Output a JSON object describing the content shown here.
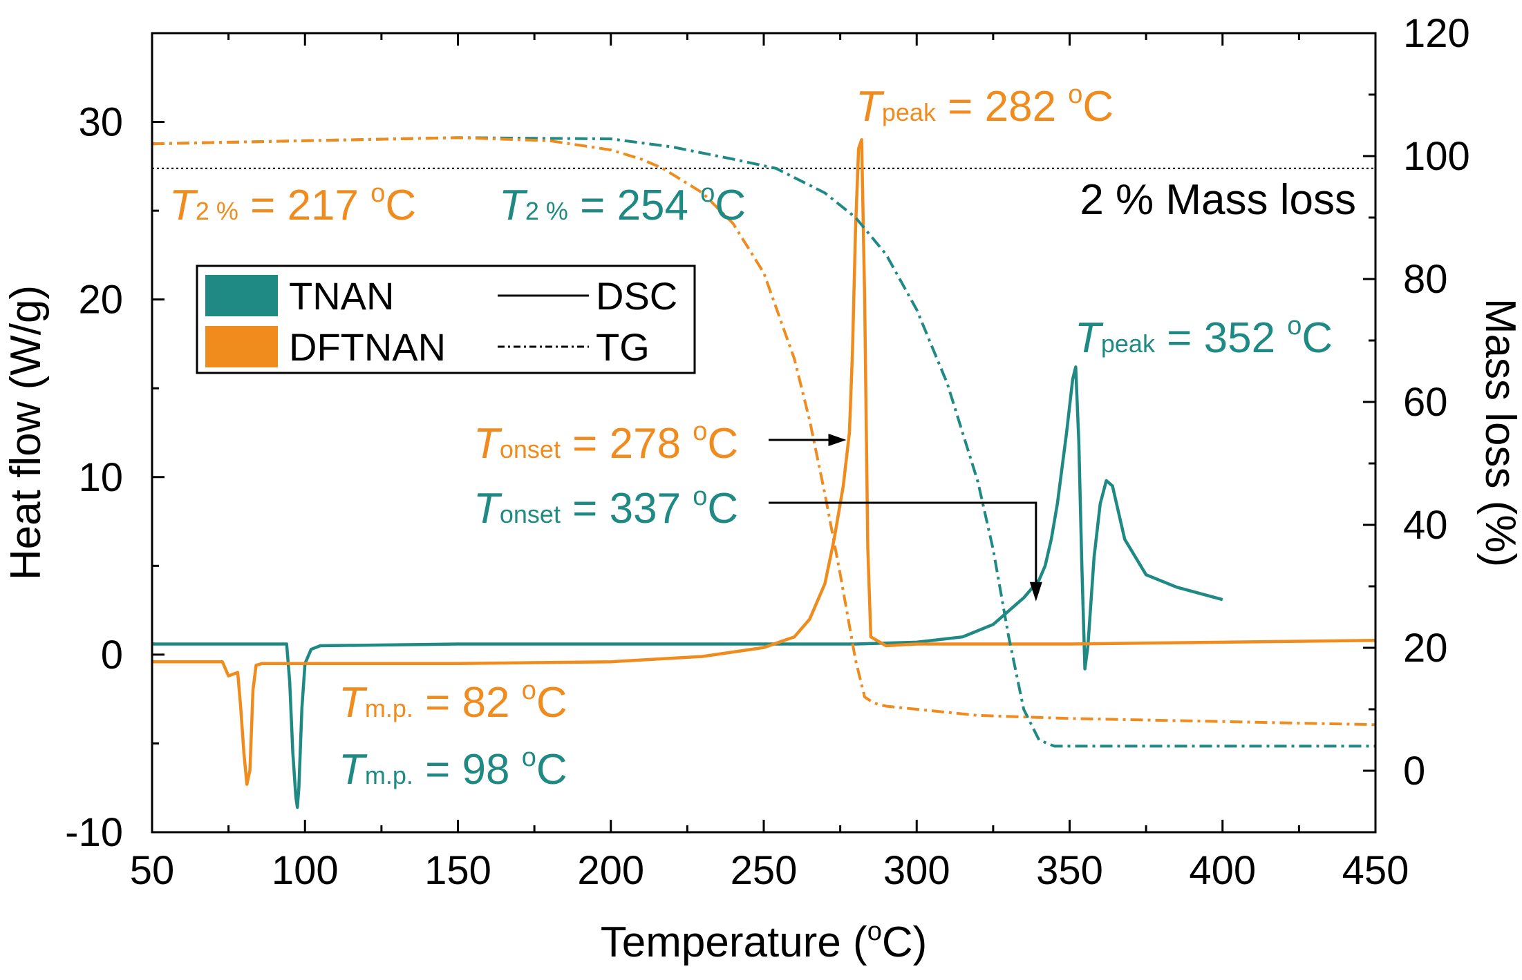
{
  "chart_data": {
    "type": "line",
    "xlabel": "Temperature (°C)",
    "xlabel_pre": "Temperature (",
    "xlabel_sup": "o",
    "xlabel_post": "C)",
    "ylabel_left": "Heat flow (W/g)",
    "ylabel_right": "Mass loss (%)",
    "xlim": [
      50,
      450
    ],
    "ylim_left": [
      -10,
      35
    ],
    "ylim_right": [
      -10,
      120
    ],
    "xticks": [
      "50",
      "100",
      "150",
      "200",
      "250",
      "300",
      "350",
      "400",
      "450"
    ],
    "yticks_left": [
      "-10",
      "0",
      "10",
      "20",
      "30"
    ],
    "yticks_right": [
      "0",
      "20",
      "40",
      "60",
      "80",
      "100",
      "120"
    ],
    "colors": {
      "TNAN": "#1f8a84",
      "DFTNAN": "#f08c1e",
      "reference": "#000000"
    },
    "legend": {
      "materials": [
        "TNAN",
        "DFTNAN"
      ],
      "styles": [
        "DSC",
        "TG"
      ]
    },
    "reference_line": {
      "mass_loss_percent": 98,
      "label": "2 % Mass loss"
    },
    "series": [
      {
        "name": "TNAN DSC",
        "material": "TNAN",
        "axis": "left",
        "style": "solid",
        "x": [
          50,
          94,
          95,
          96,
          97,
          97.5,
          98,
          99,
          100,
          102,
          105,
          150,
          200,
          250,
          280,
          300,
          315,
          325,
          335,
          340,
          342,
          344,
          346,
          349,
          351,
          352,
          353,
          354,
          355,
          356,
          358,
          360,
          362,
          364,
          368,
          375,
          385,
          400
        ],
        "y": [
          0.6,
          0.6,
          -1.5,
          -5.5,
          -8.0,
          -8.6,
          -7.5,
          -3.0,
          -0.5,
          0.3,
          0.5,
          0.6,
          0.6,
          0.6,
          0.6,
          0.7,
          1.0,
          1.7,
          3.2,
          4.2,
          5.0,
          6.5,
          8.5,
          12.5,
          15.5,
          16.2,
          12.0,
          5.0,
          -0.8,
          0.5,
          5.5,
          8.5,
          9.8,
          9.5,
          6.5,
          4.5,
          3.8,
          3.1
        ]
      },
      {
        "name": "DFTNAN DSC",
        "material": "DFTNAN",
        "axis": "left",
        "style": "solid",
        "x": [
          50,
          73,
          75,
          78,
          79,
          80,
          81,
          82,
          83,
          84,
          86,
          100,
          150,
          200,
          230,
          250,
          260,
          265,
          270,
          273,
          276,
          278,
          279,
          280,
          281,
          282,
          283,
          284,
          285,
          290,
          300,
          350,
          400,
          450
        ],
        "y": [
          -0.4,
          -0.4,
          -1.2,
          -1.0,
          -3.0,
          -5.5,
          -7.3,
          -6.5,
          -2.0,
          -0.6,
          -0.5,
          -0.5,
          -0.5,
          -0.4,
          -0.1,
          0.4,
          1.0,
          2.0,
          4.0,
          6.5,
          9.5,
          12.5,
          17.0,
          24.0,
          28.5,
          29.0,
          20.0,
          6.0,
          1.0,
          0.5,
          0.6,
          0.6,
          0.7,
          0.8
        ]
      },
      {
        "name": "TNAN TG",
        "material": "TNAN",
        "axis": "right",
        "style": "dashdot",
        "x": [
          50,
          100,
          150,
          200,
          220,
          240,
          254,
          270,
          280,
          290,
          300,
          310,
          320,
          325,
          330,
          335,
          340,
          345,
          350,
          400,
          450
        ],
        "y": [
          102,
          102.5,
          103,
          102.8,
          101.5,
          99.5,
          98,
          94,
          90,
          84,
          75,
          63,
          47,
          36,
          22,
          10,
          5,
          4,
          4,
          4,
          4
        ]
      },
      {
        "name": "DFTNAN TG",
        "material": "DFTNAN",
        "axis": "right",
        "style": "dashdot",
        "x": [
          50,
          100,
          150,
          180,
          200,
          210,
          217,
          230,
          240,
          250,
          260,
          265,
          270,
          275,
          280,
          283,
          286,
          290,
          300,
          320,
          350,
          400,
          450
        ],
        "y": [
          102,
          102.5,
          103,
          102.5,
          101,
          99.5,
          98,
          94,
          89,
          81,
          67,
          57,
          45,
          32,
          18,
          12,
          11,
          10.5,
          10,
          9,
          8.5,
          8,
          7.5
        ]
      }
    ],
    "annotations": [
      {
        "id": "peak_dftnan",
        "italic": "T",
        "sub": "peak",
        "value": " = 282 ",
        "sup": "o",
        "unit": "C",
        "material": "DFTNAN"
      },
      {
        "id": "peak_tnan",
        "italic": "T",
        "sub": "peak",
        "value": " = 352 ",
        "sup": "o",
        "unit": "C",
        "material": "TNAN"
      },
      {
        "id": "t2_dftnan",
        "italic": "T",
        "sub": "2 %",
        "value": " = 217 ",
        "sup": "o",
        "unit": "C",
        "material": "DFTNAN"
      },
      {
        "id": "t2_tnan",
        "italic": "T",
        "sub": "2 %",
        "value": " = 254 ",
        "sup": "o",
        "unit": "C",
        "material": "TNAN"
      },
      {
        "id": "onset_dftnan",
        "italic": "T",
        "sub": "onset",
        "value": " = 278 ",
        "sup": "o",
        "unit": "C",
        "material": "DFTNAN",
        "arrow_to": {
          "x": 277,
          "y": 12
        }
      },
      {
        "id": "onset_tnan",
        "italic": "T",
        "sub": "onset",
        "value": " = 337 ",
        "sup": "o",
        "unit": "C",
        "material": "TNAN",
        "arrow_to": {
          "x": 339,
          "y": 3
        }
      },
      {
        "id": "mp_dftnan",
        "italic": "T",
        "sub": "m.p.",
        "value": " = 82 ",
        "sup": "o",
        "unit": "C",
        "material": "DFTNAN"
      },
      {
        "id": "mp_tnan",
        "italic": "T",
        "sub": "m.p.",
        "value": " = 98 ",
        "sup": "o",
        "unit": "C",
        "material": "TNAN"
      }
    ]
  }
}
